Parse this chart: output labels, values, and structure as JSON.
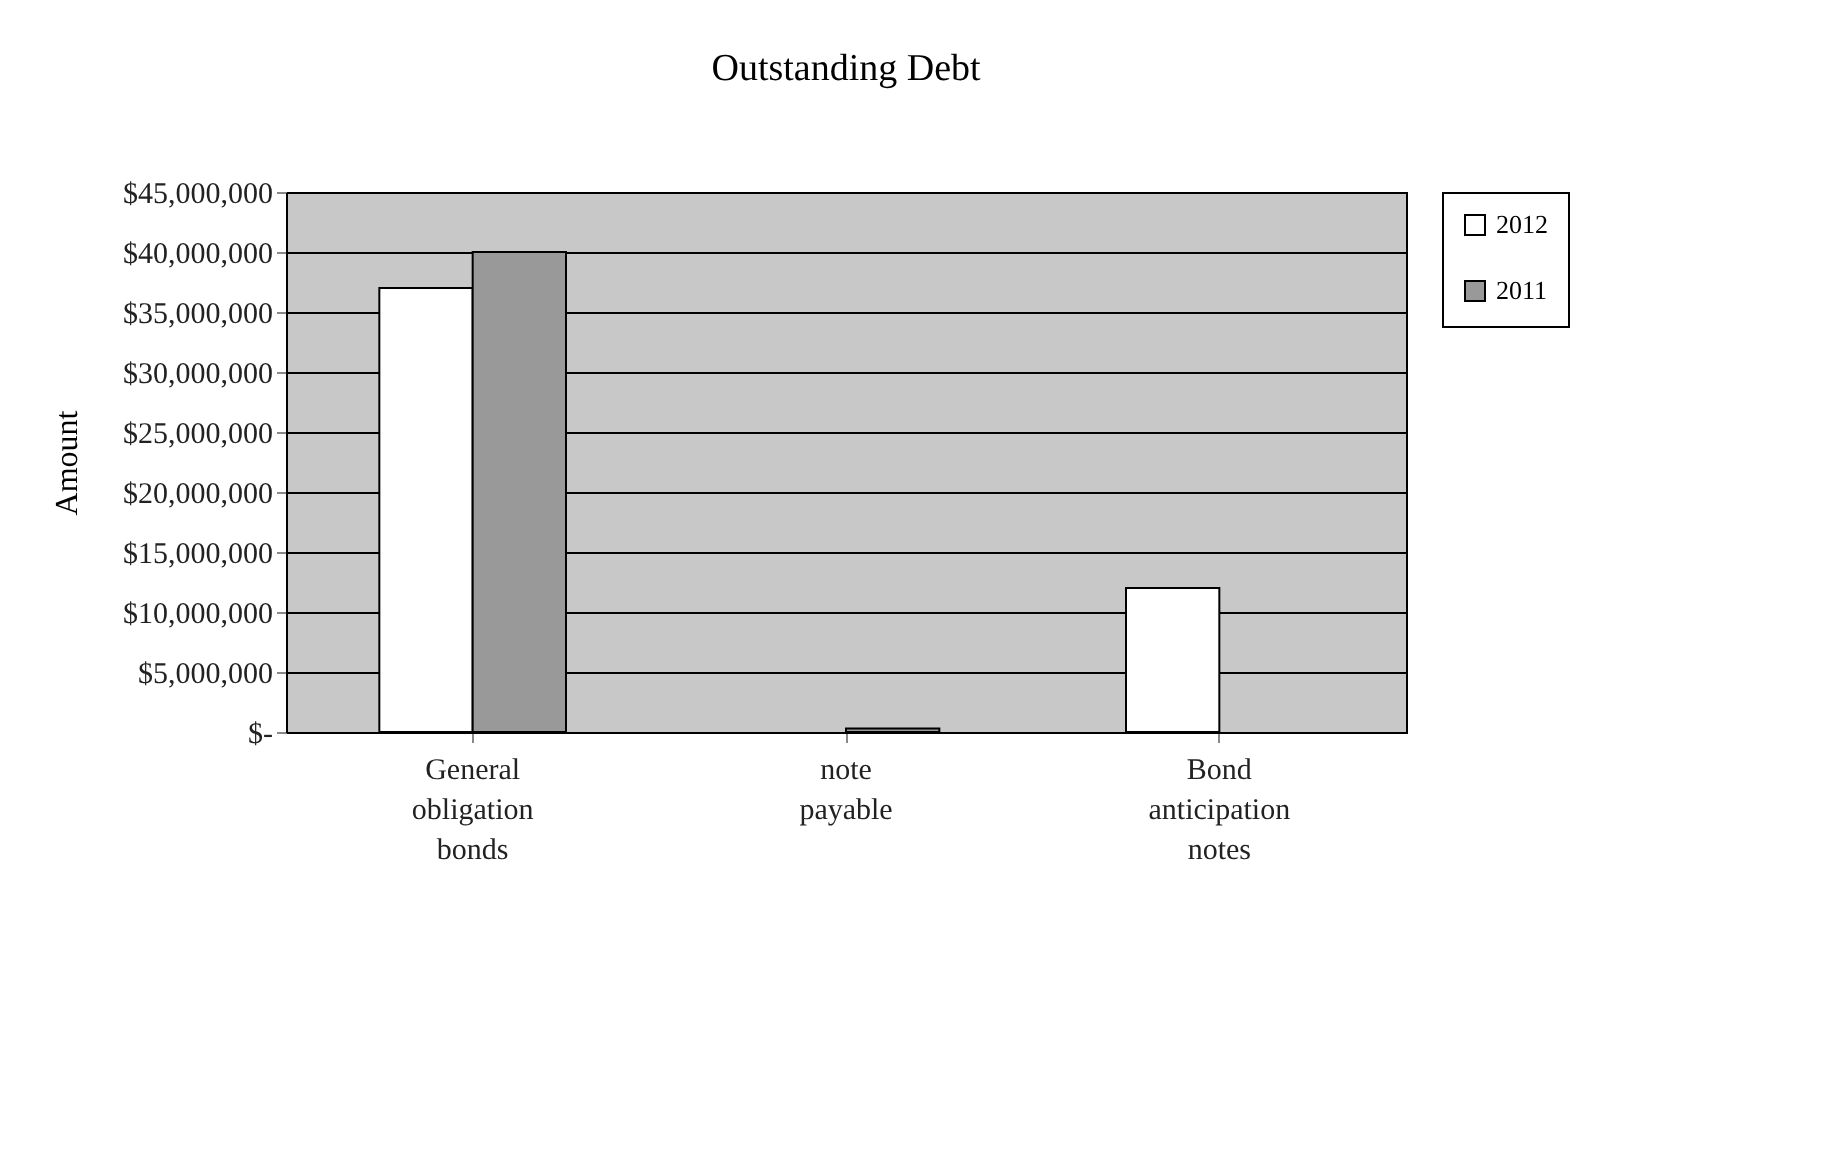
{
  "chart_data": {
    "type": "bar",
    "title": "Outstanding Debt",
    "ylabel": "Amount",
    "categories": [
      "General obligation bonds",
      "note payable",
      "Bond anticipation notes"
    ],
    "series": [
      {
        "name": "2012",
        "color": "#ffffff",
        "values": [
          37000000,
          null,
          12000000
        ]
      },
      {
        "name": "2011",
        "color": "#999999",
        "values": [
          40000000,
          300000,
          null
        ]
      }
    ],
    "ylim": [
      0,
      45000000
    ],
    "yticks": [
      {
        "value": 0,
        "label": "$-"
      },
      {
        "value": 5000000,
        "label": "$5,000,000"
      },
      {
        "value": 10000000,
        "label": "$10,000,000"
      },
      {
        "value": 15000000,
        "label": "$15,000,000"
      },
      {
        "value": 20000000,
        "label": "$20,000,000"
      },
      {
        "value": 25000000,
        "label": "$25,000,000"
      },
      {
        "value": 30000000,
        "label": "$30,000,000"
      },
      {
        "value": 35000000,
        "label": "$35,000,000"
      },
      {
        "value": 40000000,
        "label": "$40,000,000"
      },
      {
        "value": 45000000,
        "label": "$45,000,000"
      }
    ],
    "grid": "y",
    "legend": "right"
  }
}
